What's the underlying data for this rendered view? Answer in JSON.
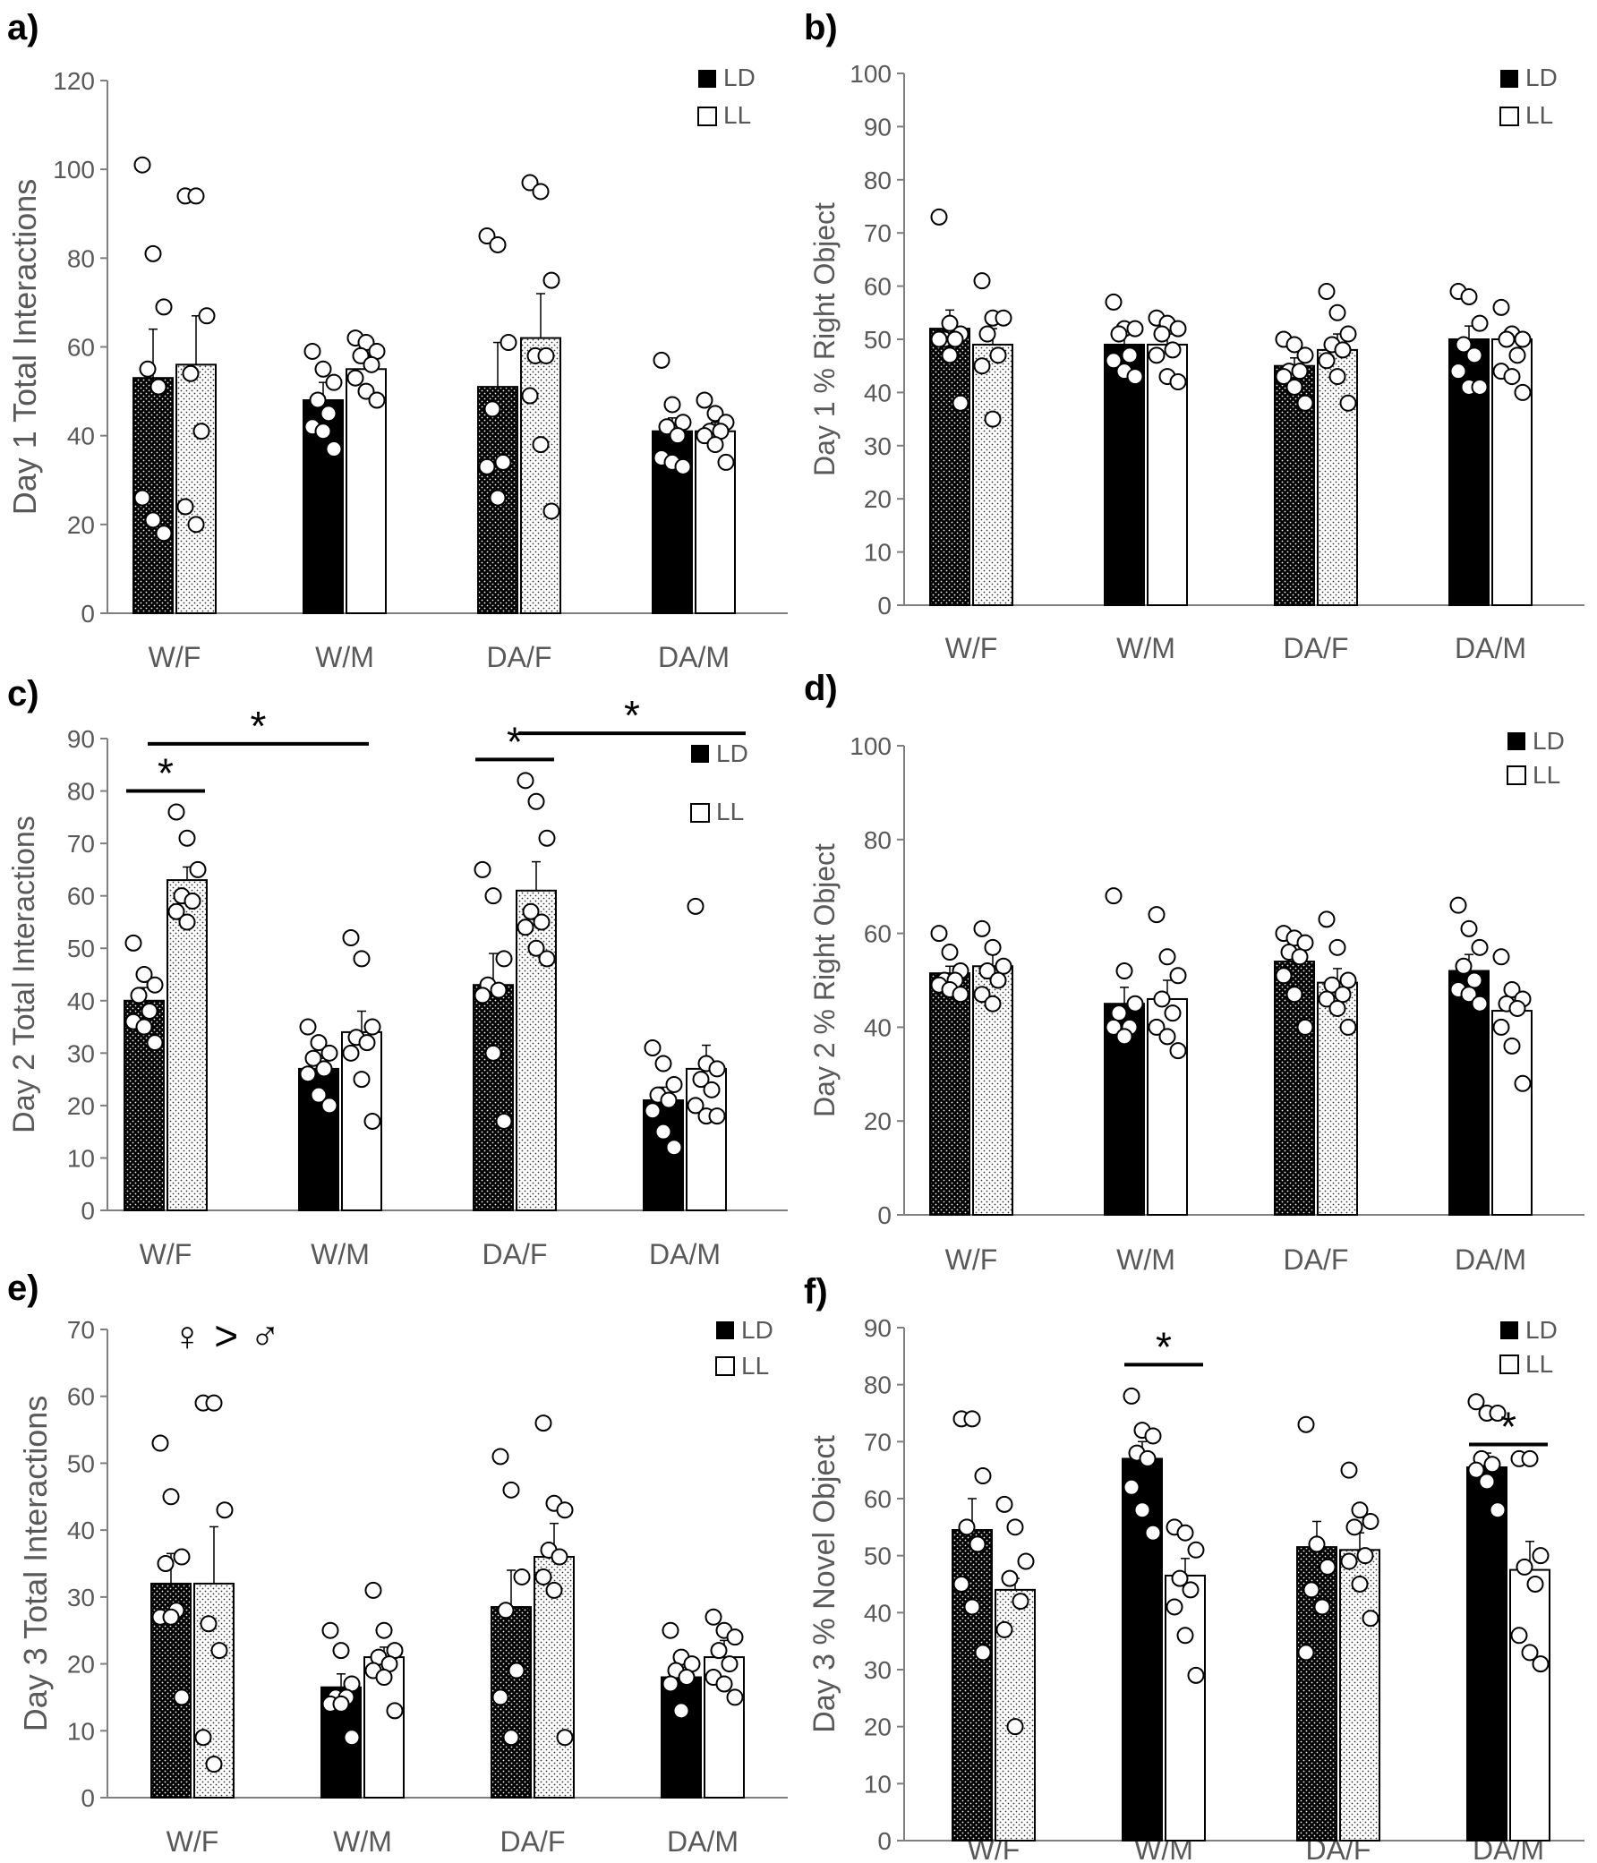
{
  "figure": {
    "groups": [
      "W/F",
      "W/M",
      "DA/F",
      "DA/M"
    ],
    "legend": {
      "ld": "LD",
      "ll": "LL"
    },
    "colors": {
      "bar_solid": "#000000",
      "bar_open": "#ffffff",
      "axis": "#7f7f7f",
      "text": "#595959",
      "stroke": "#000000"
    }
  },
  "chart_data": [
    {
      "panel": "a)",
      "type": "bar",
      "ylabel": "Day 1 Total Interactions",
      "ylim": [
        0,
        120
      ],
      "yticks": [
        0,
        20,
        40,
        60,
        80,
        100,
        120
      ],
      "categories": [
        "W/F",
        "W/M",
        "DA/F",
        "DA/M"
      ],
      "series": [
        {
          "name": "LD",
          "values": [
            53,
            48,
            51,
            41
          ],
          "sem": [
            11,
            4,
            10,
            3
          ]
        },
        {
          "name": "LL",
          "values": [
            56,
            55,
            62,
            41
          ],
          "sem": [
            11,
            3,
            10,
            2
          ]
        }
      ],
      "points": [
        [
          [
            101,
            81,
            69,
            55,
            51,
            26,
            21,
            18
          ],
          [
            94,
            94,
            67,
            54,
            41,
            24,
            20
          ]
        ],
        [
          [
            59,
            55,
            52,
            48,
            45,
            42,
            41,
            37
          ],
          [
            62,
            61,
            59,
            58,
            56,
            53,
            50,
            48
          ]
        ],
        [
          [
            85,
            83,
            61,
            46,
            34,
            33,
            26
          ],
          [
            97,
            95,
            75,
            58,
            58,
            49,
            38,
            23
          ]
        ],
        [
          [
            57,
            47,
            43,
            42,
            40,
            35,
            34,
            33
          ],
          [
            48,
            45,
            43,
            41,
            41,
            40,
            38,
            34
          ]
        ]
      ],
      "sig": [],
      "note": ""
    },
    {
      "panel": "b)",
      "type": "bar",
      "ylabel": "Day 1 % Right Object",
      "ylim": [
        0,
        100
      ],
      "yticks": [
        0,
        10,
        20,
        30,
        40,
        50,
        60,
        70,
        80,
        90,
        100
      ],
      "categories": [
        "W/F",
        "W/M",
        "DA/F",
        "DA/M"
      ],
      "series": [
        {
          "name": "LD",
          "values": [
            52,
            49,
            45,
            50
          ],
          "sem": [
            3.5,
            2.5,
            1.5,
            2.5
          ]
        },
        {
          "name": "LL",
          "values": [
            49,
            49,
            48,
            50
          ],
          "sem": [
            3,
            2,
            3,
            2
          ]
        }
      ],
      "points": [
        [
          [
            73,
            53,
            51,
            50,
            50,
            50,
            47,
            38
          ],
          [
            61,
            54,
            54,
            51,
            47,
            45,
            35
          ]
        ],
        [
          [
            57,
            52,
            52,
            51,
            47,
            46,
            44,
            43
          ],
          [
            54,
            53,
            52,
            51,
            48,
            47,
            43,
            42
          ]
        ],
        [
          [
            50,
            49,
            47,
            44,
            44,
            43,
            41,
            38
          ],
          [
            59,
            55,
            51,
            49,
            48,
            46,
            43,
            38
          ]
        ],
        [
          [
            59,
            58,
            53,
            49,
            47,
            44,
            41,
            41
          ],
          [
            56,
            51,
            50,
            50,
            47,
            44,
            43,
            40
          ]
        ]
      ],
      "sig": [],
      "note": ""
    },
    {
      "panel": "c)",
      "type": "bar",
      "ylabel": "Day 2 Total Interactions",
      "ylim": [
        0,
        90
      ],
      "yticks": [
        0,
        10,
        20,
        30,
        40,
        50,
        60,
        70,
        80,
        90
      ],
      "categories": [
        "W/F",
        "W/M",
        "DA/F",
        "DA/M"
      ],
      "series": [
        {
          "name": "LD",
          "values": [
            40,
            27,
            43,
            21
          ],
          "sem": [
            2.5,
            2,
            6,
            2.5
          ]
        },
        {
          "name": "LL",
          "values": [
            63,
            34,
            61,
            27
          ],
          "sem": [
            2.5,
            4,
            5.5,
            4.5
          ]
        }
      ],
      "points": [
        [
          [
            51,
            45,
            43,
            41,
            38,
            36,
            35,
            32
          ],
          [
            76,
            71,
            65,
            60,
            59,
            57,
            55
          ]
        ],
        [
          [
            35,
            32,
            30,
            29,
            27,
            26,
            22,
            20
          ],
          [
            52,
            48,
            35,
            33,
            32,
            30,
            25,
            17
          ]
        ],
        [
          [
            65,
            60,
            48,
            43,
            42,
            41,
            30,
            17
          ],
          [
            82,
            78,
            71,
            57,
            55,
            54,
            50,
            48
          ]
        ],
        [
          [
            31,
            28,
            24,
            22,
            21,
            19,
            15,
            12
          ],
          [
            58,
            28,
            27,
            25,
            23,
            20,
            18,
            18
          ]
        ]
      ],
      "sig": [
        {
          "from": [
            0,
            0
          ],
          "to": [
            0,
            1
          ],
          "y": 80,
          "label": "*"
        },
        {
          "from": [
            0,
            0.5
          ],
          "to": [
            1,
            0.75
          ],
          "y": 89,
          "label": "*"
        },
        {
          "from": [
            2,
            0
          ],
          "to": [
            2,
            1
          ],
          "y": 86,
          "label": "*"
        },
        {
          "from": [
            2,
            1
          ],
          "to": [
            3,
            1.5
          ],
          "y": 91,
          "label": "*"
        }
      ],
      "note": ""
    },
    {
      "panel": "d)",
      "type": "bar",
      "ylabel": "Day 2 % Right Object",
      "ylim": [
        0,
        100
      ],
      "yticks": [
        0,
        20,
        40,
        60,
        80,
        100
      ],
      "categories": [
        "W/F",
        "W/M",
        "DA/F",
        "DA/M"
      ],
      "series": [
        {
          "name": "LD",
          "values": [
            51.5,
            45,
            54,
            52
          ],
          "sem": [
            1.5,
            3.5,
            2,
            3.5
          ]
        },
        {
          "name": "LL",
          "values": [
            53,
            46,
            49.5,
            43.5
          ],
          "sem": [
            2.5,
            4,
            3,
            4
          ]
        }
      ],
      "points": [
        [
          [
            60,
            56,
            52,
            50,
            50,
            49,
            48,
            47
          ],
          [
            61,
            57,
            53,
            52,
            50,
            47,
            45
          ]
        ],
        [
          [
            68,
            52,
            45,
            43,
            40,
            40,
            38
          ],
          [
            64,
            55,
            51,
            46,
            43,
            40,
            38,
            35
          ]
        ],
        [
          [
            60,
            59,
            58,
            56,
            55,
            51,
            47,
            40
          ],
          [
            63,
            57,
            50,
            49,
            47,
            46,
            44,
            40
          ]
        ],
        [
          [
            66,
            61,
            57,
            53,
            50,
            48,
            47,
            45
          ],
          [
            55,
            48,
            46,
            45,
            44,
            40,
            36,
            28
          ]
        ]
      ],
      "sig": [],
      "note": ""
    },
    {
      "panel": "e)",
      "type": "bar",
      "ylabel": "Day 3 Total Interactions",
      "ylim": [
        0,
        70
      ],
      "yticks": [
        0,
        10,
        20,
        30,
        40,
        50,
        60,
        70
      ],
      "categories": [
        "W/F",
        "W/M",
        "DA/F",
        "DA/M"
      ],
      "series": [
        {
          "name": "LD",
          "values": [
            32,
            16.5,
            28.5,
            18
          ],
          "sem": [
            4.5,
            2,
            5.5,
            1.5
          ]
        },
        {
          "name": "LL",
          "values": [
            32,
            21,
            36,
            21
          ],
          "sem": [
            8.5,
            1.5,
            5,
            2.5
          ]
        }
      ],
      "points": [
        [
          [
            53,
            45,
            36,
            35,
            28,
            27,
            27,
            15
          ],
          [
            59,
            59,
            43,
            26,
            22,
            9,
            5
          ]
        ],
        [
          [
            25,
            22,
            17,
            15,
            15,
            14,
            14,
            9
          ],
          [
            31,
            25,
            22,
            21,
            20,
            19,
            18,
            13
          ]
        ],
        [
          [
            51,
            46,
            33,
            28,
            19,
            15,
            9
          ],
          [
            56,
            44,
            43,
            37,
            36,
            33,
            31,
            9
          ]
        ],
        [
          [
            25,
            21,
            20,
            19,
            18,
            17,
            13
          ],
          [
            27,
            25,
            24,
            22,
            20,
            18,
            17,
            15
          ]
        ]
      ],
      "sig": [],
      "note": "♀ > ♂"
    },
    {
      "panel": "f)",
      "type": "bar",
      "ylabel": "Day 3 % Novel Object",
      "ylim": [
        0,
        90
      ],
      "yticks": [
        0,
        10,
        20,
        30,
        40,
        50,
        60,
        70,
        80,
        90
      ],
      "categories": [
        "W/F",
        "W/M",
        "DA/F",
        "DA/M"
      ],
      "series": [
        {
          "name": "LD",
          "values": [
            54.5,
            67,
            51.5,
            65.5
          ],
          "sem": [
            5.5,
            3,
            4.5,
            2.5
          ]
        },
        {
          "name": "LL",
          "values": [
            44,
            46.5,
            51,
            47.5
          ],
          "sem": [
            2,
            3,
            3,
            5
          ]
        }
      ],
      "points": [
        [
          [
            74,
            74,
            64,
            55,
            52,
            45,
            41,
            33
          ],
          [
            59,
            55,
            49,
            46,
            42,
            37,
            20
          ]
        ],
        [
          [
            78,
            72,
            71,
            68,
            67,
            62,
            58,
            54
          ],
          [
            55,
            54,
            51,
            46,
            44,
            41,
            36,
            29
          ]
        ],
        [
          [
            73,
            52,
            48,
            44,
            41,
            33
          ],
          [
            65,
            58,
            56,
            55,
            50,
            49,
            45,
            39
          ]
        ],
        [
          [
            77,
            75,
            75,
            67,
            66,
            65,
            63,
            58
          ],
          [
            67,
            67,
            50,
            48,
            45,
            36,
            33,
            31
          ]
        ]
      ],
      "sig": [
        {
          "from": [
            1,
            0
          ],
          "to": [
            1,
            1
          ],
          "y": 83.5,
          "label": "*"
        },
        {
          "from": [
            3,
            0
          ],
          "to": [
            3,
            1
          ],
          "y": 69.5,
          "label": "*"
        }
      ],
      "note": ""
    }
  ]
}
